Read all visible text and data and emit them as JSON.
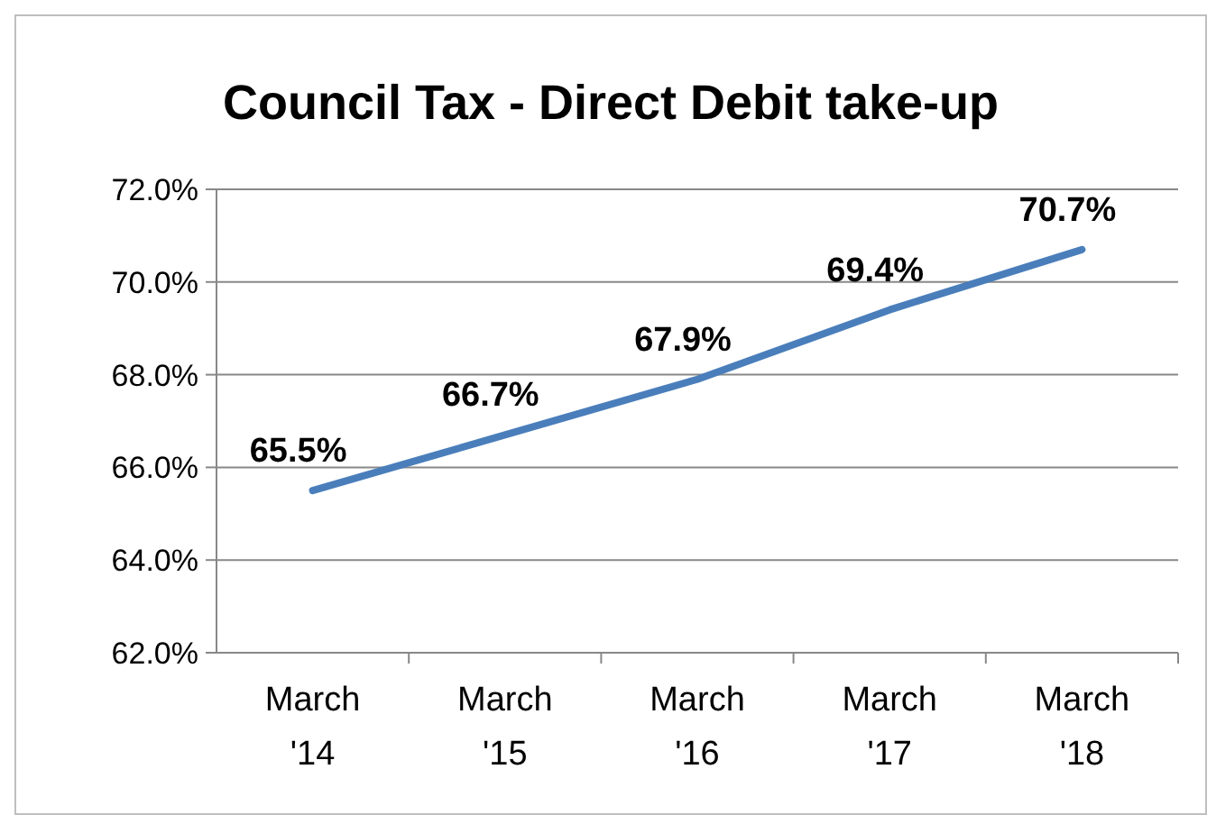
{
  "chart_data": {
    "type": "line",
    "title": "Council Tax - Direct Debit take-up",
    "categories": [
      "March '14",
      "March '15",
      "March '16",
      "March '17",
      "March '18"
    ],
    "series": [
      {
        "color": "#4a7ebb",
        "values": [
          65.5,
          66.7,
          67.9,
          69.4,
          70.7
        ],
        "value_labels": [
          "65.5%",
          "66.7%",
          "67.9%",
          "69.4%",
          "70.7%"
        ]
      }
    ],
    "ylim": [
      62,
      72
    ],
    "yticks": [
      {
        "value": 62,
        "label": "62.0%"
      },
      {
        "value": 64,
        "label": "64.0%"
      },
      {
        "value": 66,
        "label": "66.0%"
      },
      {
        "value": 68,
        "label": "68.0%"
      },
      {
        "value": 70,
        "label": "70.0%"
      },
      {
        "value": 72,
        "label": "72.0%"
      }
    ],
    "grid": "y",
    "marker": "none",
    "line_style": "solid"
  }
}
